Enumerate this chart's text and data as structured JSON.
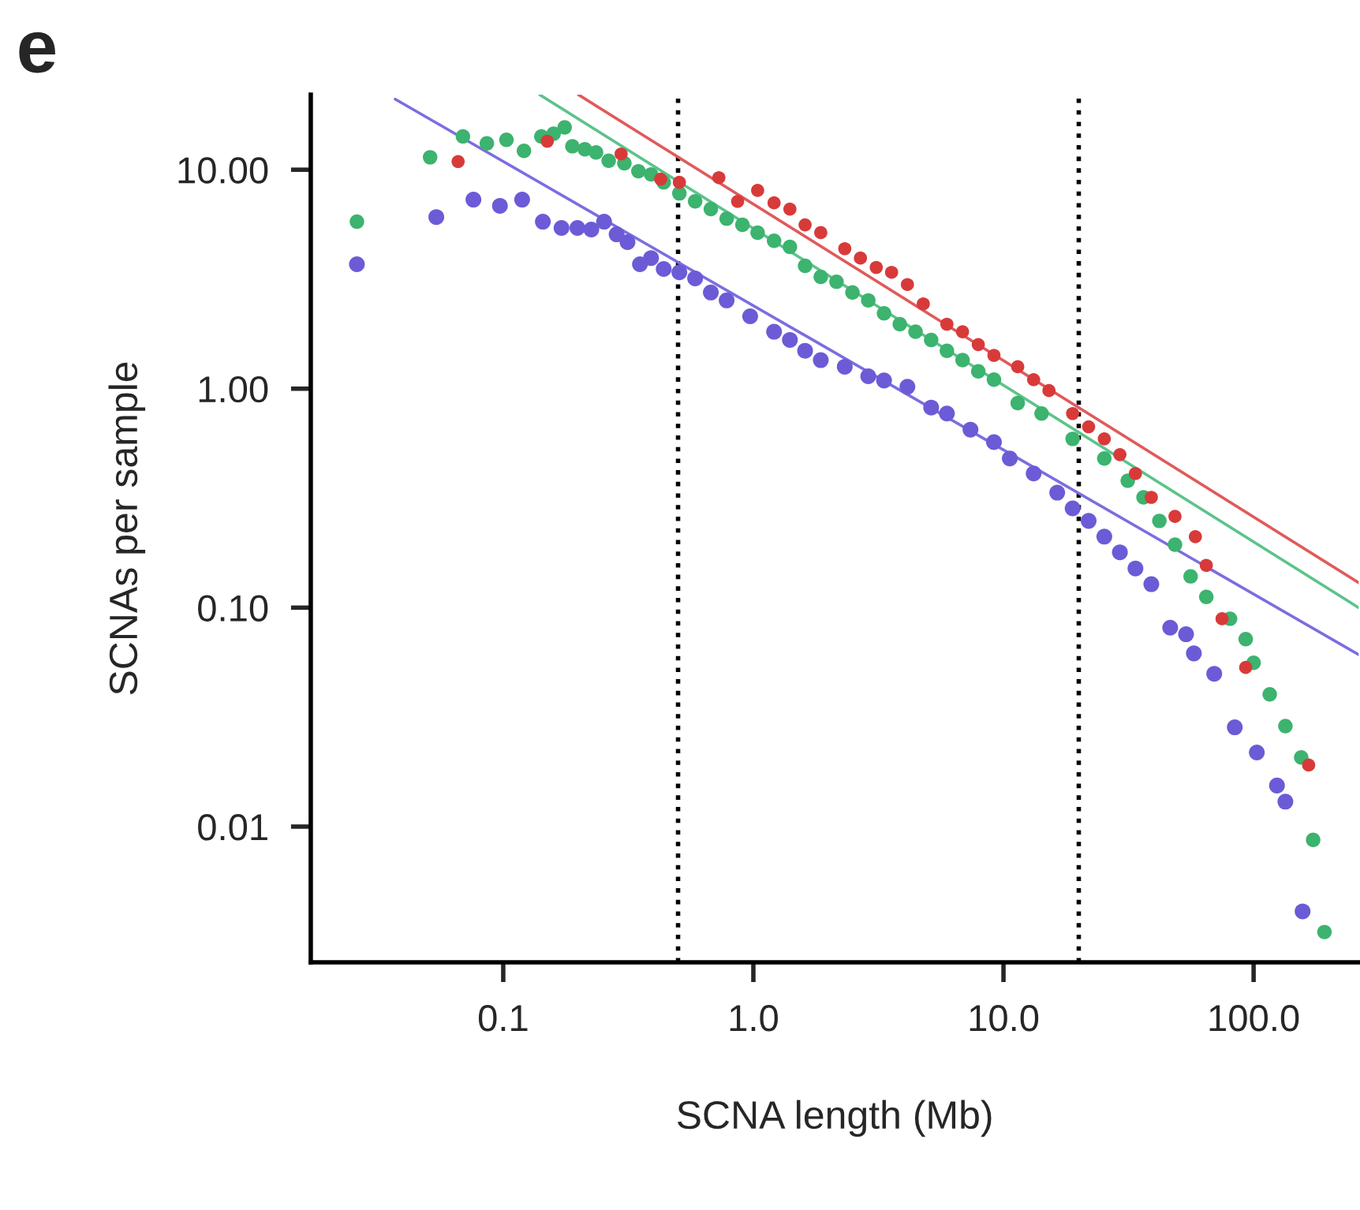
{
  "chart_data": {
    "type": "scatter",
    "title": "e",
    "xlabel": "SCNA length (Mb)",
    "ylabel": "SCNAs per sample",
    "log": "xy",
    "grid": false,
    "marker": "circle",
    "xlim": [
      0.017,
      263
    ],
    "ylim": [
      0.0024,
      22
    ],
    "xticks": [
      {
        "value": 0.1,
        "label": "0.1"
      },
      {
        "value": 1,
        "label": "1.0"
      },
      {
        "value": 10,
        "label": "10.0"
      },
      {
        "value": 100,
        "label": "100.0"
      }
    ],
    "yticks": [
      {
        "value": 0.01,
        "label": "0.01"
      },
      {
        "value": 0.1,
        "label": "0.10"
      },
      {
        "value": 1,
        "label": "1.00"
      },
      {
        "value": 10,
        "label": "10.00"
      }
    ],
    "ref_lines": [
      {
        "axis": "x",
        "value": 0.5,
        "color": "#000000",
        "line_style": "dotted"
      },
      {
        "axis": "x",
        "value": 20,
        "color": "#000000",
        "line_style": "dotted"
      }
    ],
    "series": [
      {
        "color": "#6b5bd6",
        "x": [
          0.026,
          0.054,
          0.076,
          0.097,
          0.119,
          0.144,
          0.171,
          0.198,
          0.225,
          0.253,
          0.284,
          0.314,
          0.352,
          0.39,
          0.438,
          0.506,
          0.585,
          0.676,
          0.782,
          0.971,
          1.21,
          1.4,
          1.61,
          1.86,
          2.32,
          2.88,
          3.33,
          4.13,
          5.14,
          5.94,
          7.38,
          9.16,
          10.6,
          13.2,
          16.4,
          18.9,
          21.9,
          25.3,
          29.2,
          33.7,
          39.0,
          46.4,
          53.7,
          57.7,
          69.6,
          84.1,
          103,
          124,
          134,
          157
        ],
        "values": [
          3.7,
          6.08,
          7.3,
          6.84,
          7.3,
          5.79,
          5.42,
          5.42,
          5.33,
          5.79,
          5.07,
          4.67,
          3.7,
          3.95,
          3.52,
          3.4,
          3.19,
          2.75,
          2.53,
          2.14,
          1.82,
          1.67,
          1.49,
          1.35,
          1.26,
          1.14,
          1.09,
          1.02,
          0.82,
          0.77,
          0.65,
          0.57,
          0.48,
          0.41,
          0.335,
          0.284,
          0.249,
          0.211,
          0.179,
          0.151,
          0.128,
          0.081,
          0.0756,
          0.0618,
          0.0499,
          0.0284,
          0.0218,
          0.0154,
          0.013,
          0.0041
        ]
      },
      {
        "color": "#3cb36e",
        "x": [
          0.026,
          0.051,
          0.069,
          0.086,
          0.103,
          0.121,
          0.142,
          0.159,
          0.176,
          0.189,
          0.212,
          0.235,
          0.264,
          0.305,
          0.347,
          0.39,
          0.438,
          0.506,
          0.585,
          0.676,
          0.782,
          0.904,
          1.04,
          1.21,
          1.4,
          1.61,
          1.86,
          2.15,
          2.49,
          2.88,
          3.33,
          3.85,
          4.45,
          5.14,
          5.94,
          6.86,
          7.93,
          9.16,
          11.4,
          14.2,
          18.9,
          25.3,
          31.4,
          36.3,
          42.0,
          48.5,
          56.0,
          64.7,
          80.5,
          93.0,
          100,
          116,
          134,
          155,
          173,
          192
        ],
        "values": [
          5.79,
          11.4,
          14.2,
          13.2,
          13.7,
          12.2,
          14.2,
          14.6,
          15.6,
          12.8,
          12.4,
          12.0,
          11.0,
          10.7,
          9.84,
          9.52,
          8.76,
          7.8,
          7.17,
          6.61,
          5.98,
          5.6,
          5.16,
          4.74,
          4.44,
          3.64,
          3.24,
          3.08,
          2.75,
          2.53,
          2.21,
          1.97,
          1.82,
          1.67,
          1.49,
          1.35,
          1.2,
          1.1,
          0.86,
          0.77,
          0.59,
          0.48,
          0.38,
          0.319,
          0.249,
          0.194,
          0.139,
          0.112,
          0.089,
          0.0718,
          0.056,
          0.0402,
          0.0288,
          0.0207,
          0.0087,
          0.0033
        ]
      },
      {
        "color": "#d83a3a",
        "x": [
          0.066,
          0.15,
          0.296,
          0.426,
          0.506,
          0.728,
          0.865,
          1.04,
          1.21,
          1.4,
          1.61,
          1.86,
          2.32,
          2.68,
          3.1,
          3.57,
          4.13,
          4.78,
          5.94,
          6.86,
          7.93,
          9.16,
          11.4,
          13.2,
          15.2,
          18.9,
          21.9,
          25.3,
          29.2,
          33.7,
          39.0,
          48.5,
          58.5,
          64.7,
          74.8,
          93.0,
          166
        ],
        "values": [
          10.9,
          13.5,
          11.8,
          9.06,
          8.76,
          9.2,
          7.17,
          8.05,
          7.06,
          6.61,
          5.6,
          5.16,
          4.36,
          3.95,
          3.58,
          3.4,
          2.99,
          2.44,
          1.97,
          1.82,
          1.59,
          1.42,
          1.26,
          1.1,
          0.98,
          0.77,
          0.67,
          0.59,
          0.5,
          0.41,
          0.319,
          0.261,
          0.211,
          0.156,
          0.089,
          0.0533,
          0.0191
        ]
      },
      {
        "type": "line",
        "marker": "none",
        "color": "#7a6ee0",
        "x": [
          0.037,
          263
        ],
        "values": [
          21,
          0.061
        ]
      },
      {
        "type": "line",
        "marker": "none",
        "color": "#5cc48a",
        "x": [
          0.14,
          263
        ],
        "values": [
          22,
          0.1
        ]
      },
      {
        "type": "line",
        "marker": "none",
        "color": "#e05a5a",
        "x": [
          0.2,
          263
        ],
        "values": [
          22,
          0.13
        ]
      }
    ]
  }
}
